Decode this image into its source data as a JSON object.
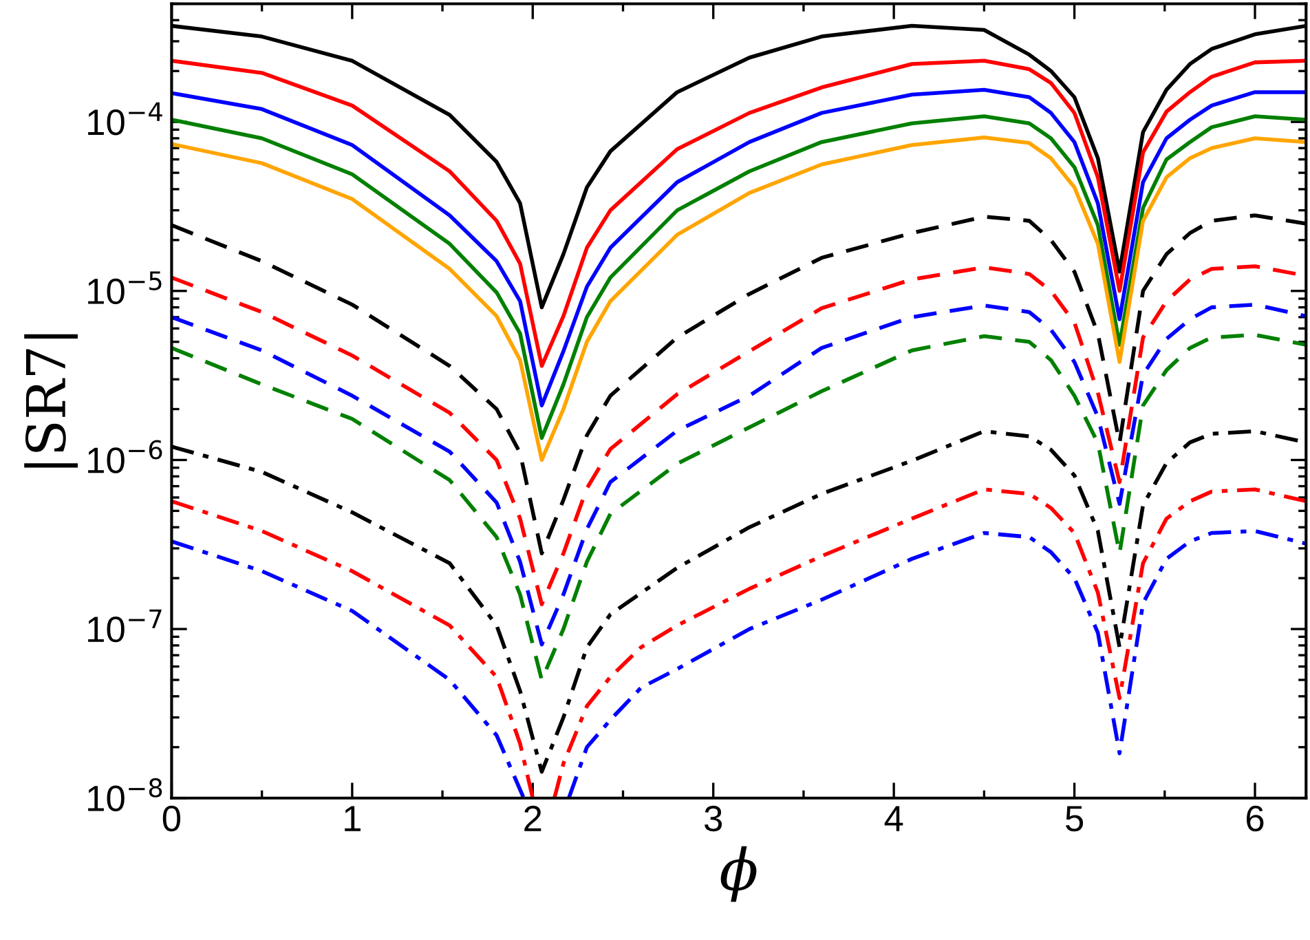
{
  "chart_data": {
    "type": "line",
    "xlabel": "ϕ",
    "ylabel": "|SR7|",
    "log": "y",
    "grid": false,
    "legend": false,
    "marker": "none",
    "x": [
      0,
      0.5,
      1.0,
      1.54,
      1.8,
      1.93,
      2.05,
      2.17,
      2.3,
      2.43,
      2.8,
      3.2,
      3.6,
      4.1,
      4.5,
      4.75,
      4.87,
      5.0,
      5.13,
      5.25,
      5.38,
      5.51,
      5.64,
      5.76,
      6.0,
      6.283
    ],
    "xlim": [
      0,
      6.283
    ],
    "ylim": [
      1e-08,
      0.0005
    ],
    "xticks": [
      0,
      {
        "value": 0.5,
        "label": null
      },
      1,
      {
        "value": 1.5,
        "label": null
      },
      2,
      {
        "value": 2.5,
        "label": null
      },
      3,
      {
        "value": 3.5,
        "label": null
      },
      4,
      {
        "value": 4.5,
        "label": null
      },
      5,
      {
        "value": 5.5,
        "label": null
      },
      6
    ],
    "yticks": [
      {
        "value": 1e-08,
        "label": "10$^{−8}$"
      },
      {
        "value": 1e-07,
        "label": "10$^{−7}$"
      },
      {
        "value": 1e-06,
        "label": "10$^{−6}$"
      },
      {
        "value": 1e-05,
        "label": "10$^{−5}$"
      },
      {
        "value": 0.0001,
        "label": "10$^{−4}$"
      }
    ],
    "series": [
      {
        "color": "#000000",
        "line_style": "solid",
        "values": [
          0.00037,
          0.00032,
          0.00023,
          0.00011,
          5.8e-05,
          3.3e-05,
          8e-06,
          1.65e-05,
          4.1e-05,
          6.7e-05,
          0.00015,
          0.00024,
          0.00032,
          0.00037,
          0.00035,
          0.00025,
          0.0002,
          0.00014,
          6.1e-05,
          1.3e-05,
          8.7e-05,
          0.000155,
          0.00022,
          0.00027,
          0.00033,
          0.00037
        ]
      },
      {
        "color": "#ff0000",
        "line_style": "solid",
        "values": [
          0.00023,
          0.000195,
          0.000125,
          5.1e-05,
          2.6e-05,
          1.45e-05,
          3.6e-06,
          7.1e-06,
          1.8e-05,
          3e-05,
          6.9e-05,
          0.000113,
          0.00016,
          0.00022,
          0.00023,
          0.000205,
          0.00017,
          0.000113,
          4.7e-05,
          1e-05,
          6.6e-05,
          0.000115,
          0.00015,
          0.000185,
          0.000225,
          0.00023
        ]
      },
      {
        "color": "#0000ff",
        "line_style": "solid",
        "values": [
          0.000148,
          0.000119,
          7.3e-05,
          2.8e-05,
          1.5e-05,
          8.7e-06,
          2.1e-06,
          4.4e-06,
          1.06e-05,
          1.8e-05,
          4.4e-05,
          7.6e-05,
          0.000113,
          0.000145,
          0.000155,
          0.00014,
          0.000113,
          7.6e-05,
          3.3e-05,
          6.8e-06,
          4.4e-05,
          8e-05,
          0.000103,
          0.000125,
          0.00015,
          0.00015
        ]
      },
      {
        "color": "#008000",
        "line_style": "solid",
        "values": [
          0.000103,
          8e-05,
          4.9e-05,
          1.9e-05,
          9.8e-06,
          5.6e-06,
          1.35e-06,
          2.8e-06,
          7e-06,
          1.2e-05,
          3e-05,
          5.1e-05,
          7.6e-05,
          9.8e-05,
          0.000108,
          9.8e-05,
          8e-05,
          5.4e-05,
          2.45e-05,
          4.8e-06,
          3.1e-05,
          6e-05,
          7.6e-05,
          9.3e-05,
          0.000108,
          0.000103
        ]
      },
      {
        "color": "#ffa500",
        "line_style": "solid",
        "values": [
          7.4e-05,
          5.7e-05,
          3.5e-05,
          1.35e-05,
          7.1e-06,
          3.9e-06,
          1e-06,
          2e-06,
          5e-06,
          8.7e-06,
          2.15e-05,
          3.8e-05,
          5.6e-05,
          7.3e-05,
          8.1e-05,
          7.5e-05,
          6.1e-05,
          4.1e-05,
          1.9e-05,
          3.8e-06,
          2.6e-05,
          4.7e-05,
          6.1e-05,
          7e-05,
          8e-05,
          7.6e-05
        ]
      },
      {
        "color": "#000000",
        "line_style": "dashed",
        "values": [
          2.45e-05,
          1.5e-05,
          8.3e-06,
          3.6e-06,
          2e-06,
          1.1e-06,
          2.8e-07,
          5.8e-07,
          1.4e-06,
          2.4e-06,
          5.3e-06,
          9.6e-06,
          1.57e-05,
          2.2e-05,
          2.75e-05,
          2.6e-05,
          2e-05,
          1.3e-05,
          5.6e-06,
          1.26e-06,
          1e-05,
          1.65e-05,
          2.2e-05,
          2.6e-05,
          2.8e-05,
          2.5e-05
        ]
      },
      {
        "color": "#ff0000",
        "line_style": "dashed",
        "values": [
          1.2e-05,
          7.5e-06,
          4.15e-06,
          1.9e-06,
          1e-06,
          4.5e-07,
          1.4e-07,
          2.8e-07,
          6.8e-07,
          1.16e-06,
          2.45e-06,
          4.4e-06,
          7.9e-06,
          1.17e-05,
          1.38e-05,
          1.26e-05,
          1e-05,
          6.5e-06,
          2.5e-06,
          7.4e-07,
          5.3e-06,
          8.7e-06,
          1.17e-05,
          1.35e-05,
          1.4e-05,
          1.23e-05
        ]
      },
      {
        "color": "#0000ff",
        "line_style": "dashed",
        "values": [
          7e-06,
          4.45e-06,
          2.4e-06,
          1.12e-06,
          5.6e-07,
          2.5e-07,
          8.1e-08,
          1.6e-07,
          3.9e-07,
          7.4e-07,
          1.49e-06,
          2.4e-06,
          4.6e-06,
          7e-06,
          8.2e-06,
          7.5e-06,
          5.9e-06,
          3.8e-06,
          1.8e-06,
          5.5e-07,
          3.2e-06,
          5.2e-06,
          6.8e-06,
          8e-06,
          8.3e-06,
          7.1e-06
        ]
      },
      {
        "color": "#008000",
        "line_style": "dashed",
        "values": [
          4.6e-06,
          2.8e-06,
          1.75e-06,
          7.6e-07,
          3.5e-07,
          1.6e-07,
          5e-08,
          1e-07,
          2.5e-07,
          4.8e-07,
          9.5e-07,
          1.56e-06,
          2.55e-06,
          4.45e-06,
          5.4e-06,
          5e-06,
          3.9e-06,
          2.4e-06,
          1.26e-06,
          2.8e-07,
          2.1e-06,
          3.4e-06,
          4.6e-06,
          5.3e-06,
          5.5e-06,
          4.8e-06
        ]
      },
      {
        "color": "#000000",
        "line_style": "dashdot",
        "values": [
          1.2e-06,
          8.5e-07,
          4.9e-07,
          2.45e-07,
          1.05e-07,
          4.3e-08,
          1.43e-08,
          3e-08,
          7.8e-08,
          1.22e-07,
          2.3e-07,
          4e-07,
          6.3e-07,
          9.9e-07,
          1.48e-06,
          1.38e-06,
          1.15e-06,
          8.1e-07,
          3.8e-07,
          7.8e-08,
          5.4e-07,
          9.6e-07,
          1.27e-06,
          1.43e-06,
          1.48e-06,
          1.27e-06
        ]
      },
      {
        "color": "#ff0000",
        "line_style": "dashdot",
        "x": [
          0,
          0.5,
          1.0,
          1.54,
          1.8,
          1.93,
          2.0,
          2.06,
          2.12,
          2.17,
          2.3,
          2.43,
          2.6,
          2.8,
          3.2,
          3.6,
          4.1,
          4.5,
          4.75,
          4.87,
          5.0,
          5.13,
          5.25,
          5.38,
          5.51,
          5.64,
          5.76,
          6.0,
          6.283
        ],
        "values": [
          5.7e-07,
          3.8e-07,
          2.2e-07,
          1.05e-07,
          5.2e-08,
          2.1e-08,
          1e-08,
          null,
          1e-08,
          1.6e-08,
          3.5e-08,
          5.2e-08,
          7.8e-08,
          1.05e-07,
          1.73e-07,
          2.7e-07,
          4.5e-07,
          6.7e-07,
          6.3e-07,
          5.2e-07,
          3.7e-07,
          1.64e-07,
          3.9e-08,
          2.45e-07,
          4.5e-07,
          5.7e-07,
          6.5e-07,
          6.7e-07,
          5.7e-07
        ]
      },
      {
        "color": "#0000ff",
        "line_style": "dashdot",
        "x": [
          0,
          0.5,
          1.0,
          1.54,
          1.8,
          1.95,
          2.07,
          2.2,
          2.3,
          2.43,
          2.6,
          2.8,
          3.2,
          3.6,
          4.1,
          4.5,
          4.75,
          4.87,
          5.0,
          5.13,
          5.25,
          5.38,
          5.51,
          5.64,
          5.76,
          6.0,
          6.283
        ],
        "values": [
          3.3e-07,
          2.2e-07,
          1.28e-07,
          5e-08,
          2.35e-08,
          1e-08,
          null,
          1e-08,
          2e-08,
          2.9e-08,
          4.5e-08,
          5.8e-08,
          1e-07,
          1.49e-07,
          2.6e-07,
          3.7e-07,
          3.5e-07,
          2.85e-07,
          2e-07,
          9.5e-08,
          1.84e-08,
          1.42e-07,
          2.6e-07,
          3.3e-07,
          3.7e-07,
          3.8e-07,
          3.2e-07
        ]
      }
    ]
  }
}
